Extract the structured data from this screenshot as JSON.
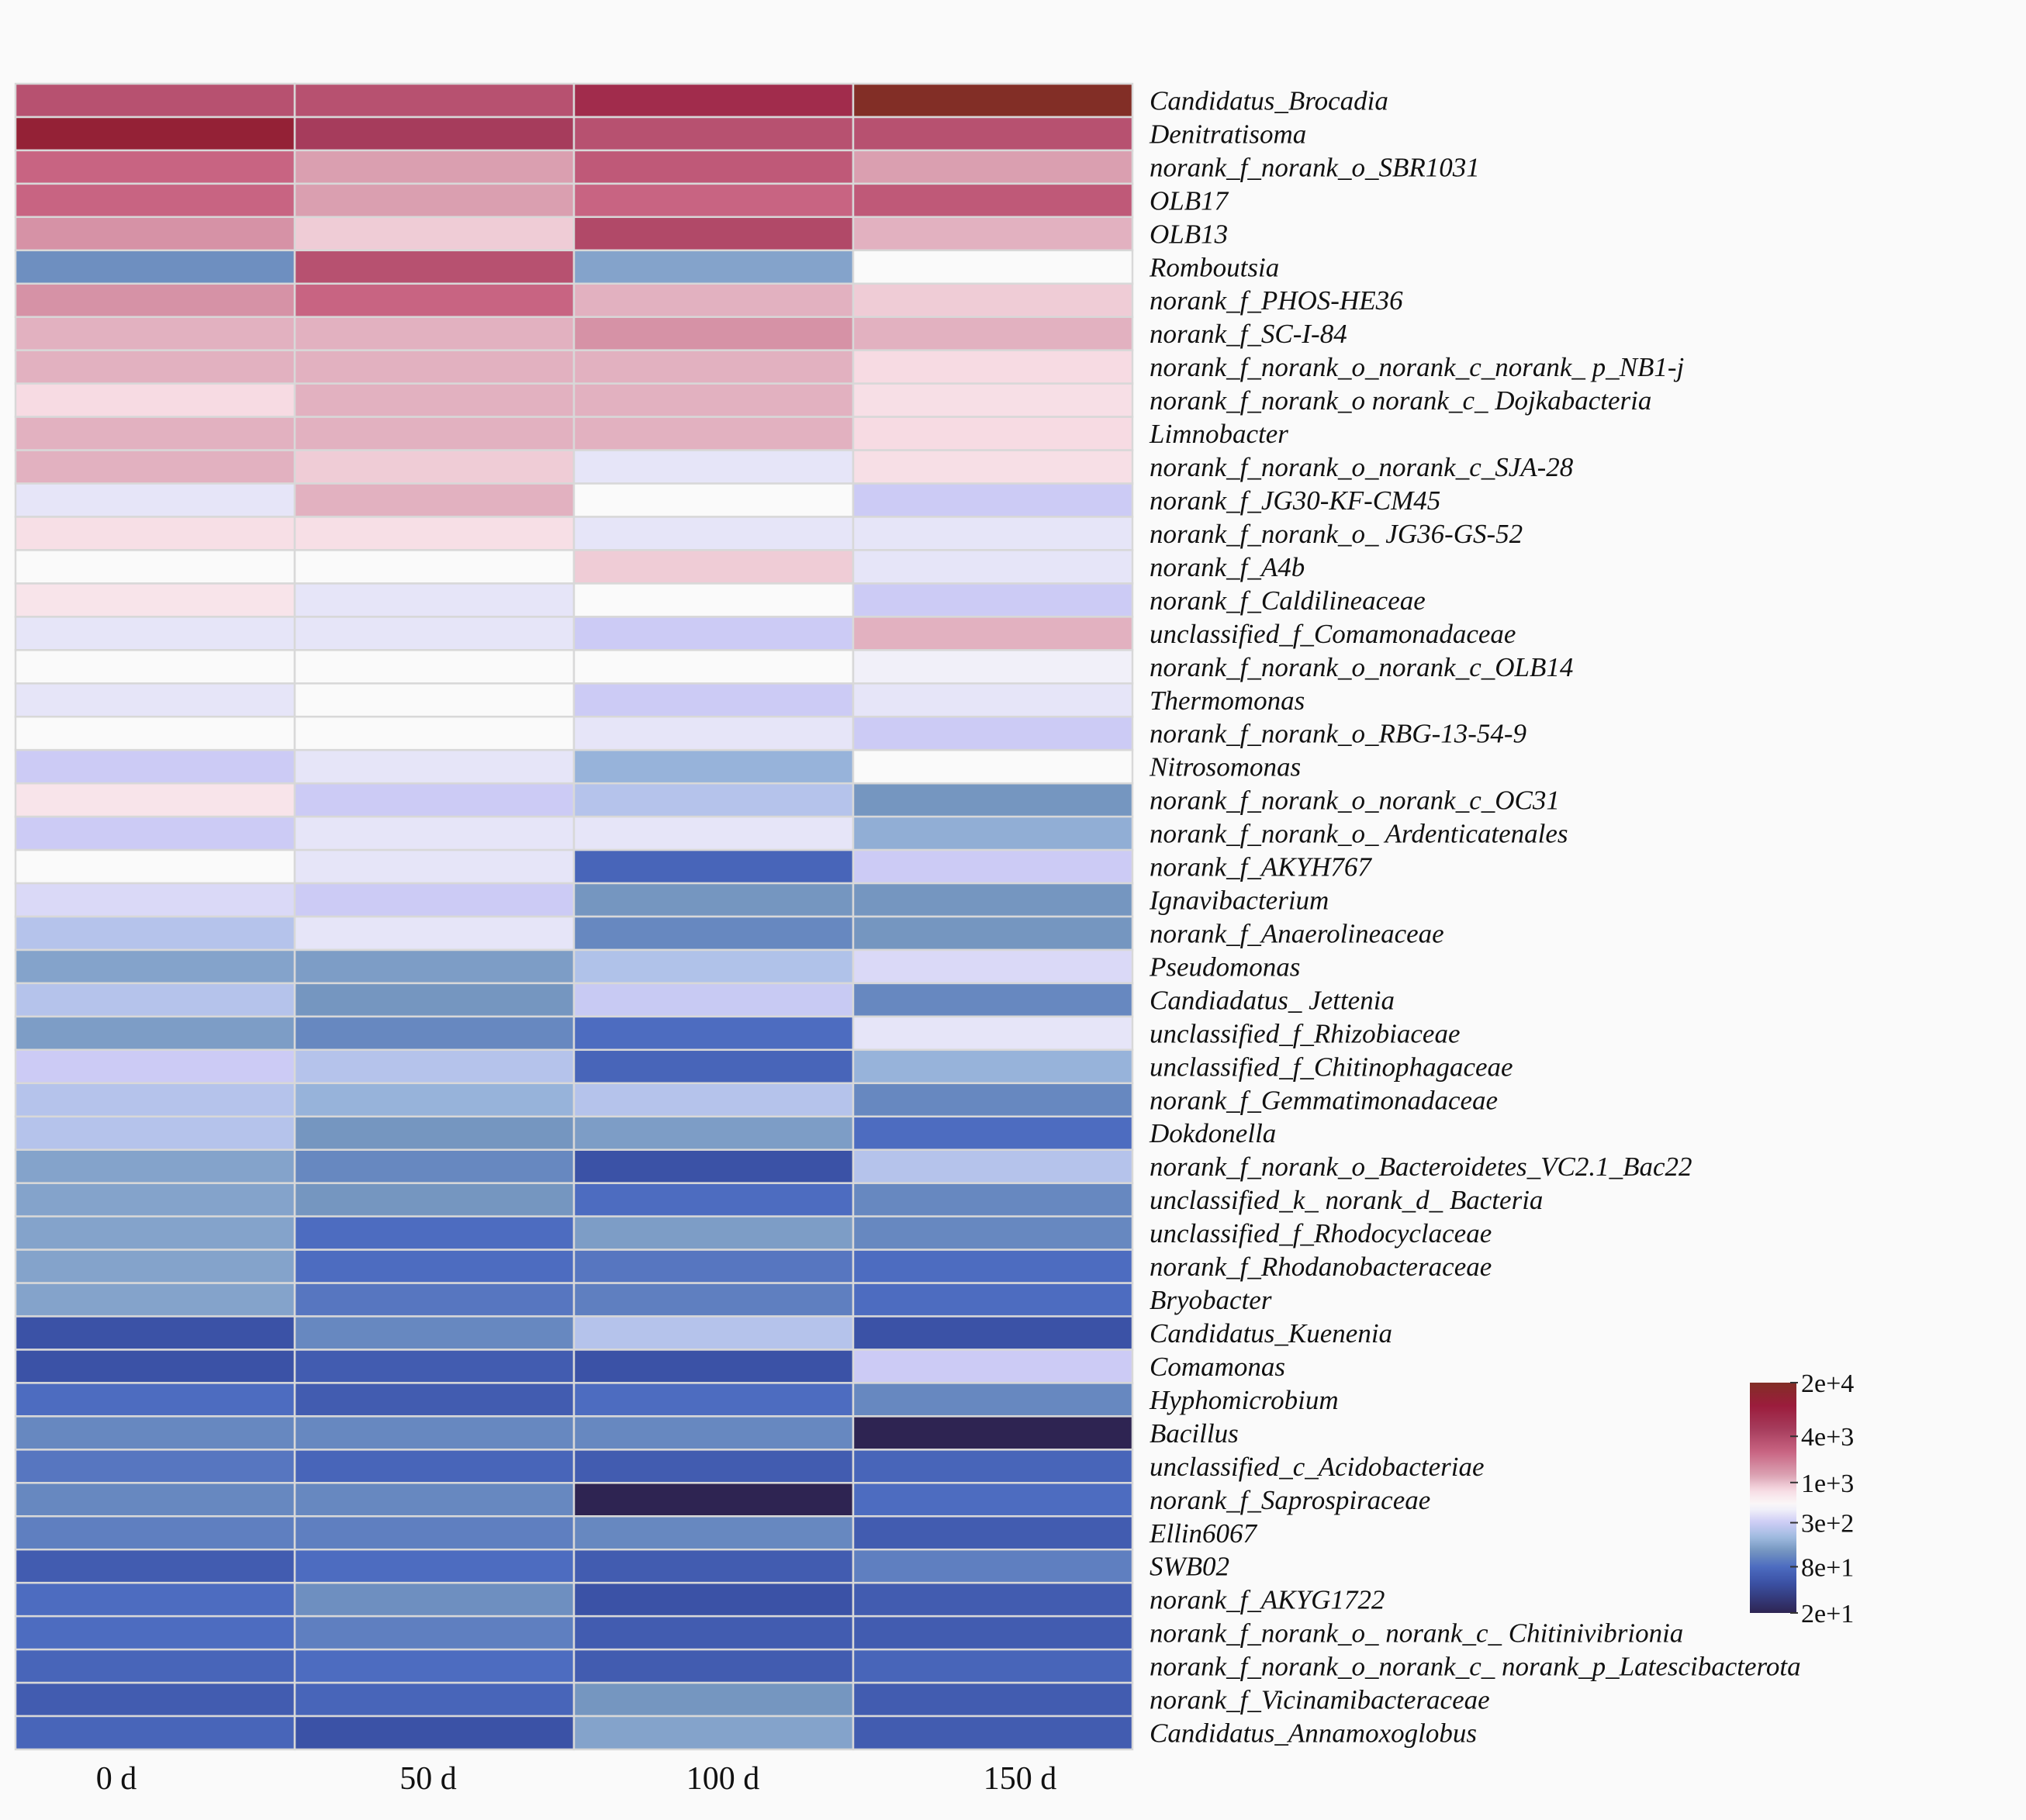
{
  "chart_data": {
    "type": "heatmap",
    "title": "",
    "xlabel": "",
    "ylabel": "",
    "columns": [
      "0 d",
      "50 d",
      "100 d",
      "150 d"
    ],
    "rows": [
      "Candidatus_Brocadia",
      "Denitratisoma",
      "norank_f_norank_o_SBR1031",
      "OLB17",
      "OLB13",
      "Romboutsia",
      "norank_f_PHOS-HE36",
      "norank_f_SC-I-84",
      "norank_f_norank_o_norank_c_norank_ p_NB1-j",
      "norank_f_norank_o norank_c_ Dojkabacteria",
      "Limnobacter",
      "norank_f_norank_o_norank_c_SJA-28",
      "norank_f_JG30-KF-CM45",
      "norank_f_norank_o_ JG36-GS-52",
      "norank_f_A4b",
      "norank_f_Caldilineaceae",
      "unclassified_f_Comamonadaceae",
      "norank_f_norank_o_norank_c_OLB14",
      "Thermomonas",
      "norank_f_norank_o_RBG-13-54-9",
      "Nitrosomonas",
      "norank_f_norank_o_norank_c_OC31",
      "norank_f_norank_o_ Ardenticatenales",
      "norank_f_AKYH767",
      "Ignavibacterium",
      "norank_f_Anaerolineaceae",
      "Pseudomonas",
      "Candiadatus_ Jettenia",
      "unclassified_f_Rhizobiaceae",
      "unclassified_f_Chitinophagaceae",
      "norank_f_Gemmatimonadaceae",
      "Dokdonella",
      "norank_f_norank_o_Bacteroidetes_VC2.1_Bac22",
      "unclassified_k_ norank_d_ Bacteria",
      "unclassified_f_Rhodocyclaceae",
      "norank_f_Rhodanobacteraceae",
      "Bryobacter",
      "Candidatus_Kuenenia",
      "Comamonas",
      "Hyphomicrobium",
      "Bacillus",
      "unclassified_c_Acidobacteriae",
      "norank_f_Saprospiraceae",
      "Ellin6067",
      "SWB02",
      "norank_f_AKYG1722",
      "norank_f_norank_o_ norank_c_ Chitinivibrionia",
      "norank_f_norank_o_norank_c_ norank_p_Latescibacterota",
      "norank_f_Vicinamibacteraceae",
      "Candidatus_Annamoxoglobus"
    ],
    "values": [
      [
        3500,
        3500,
        7000,
        20000
      ],
      [
        12000,
        5000,
        3500,
        3500
      ],
      [
        2500,
        1300,
        3000,
        1300
      ],
      [
        2500,
        1300,
        2500,
        3000
      ],
      [
        1500,
        900,
        4000,
        1100
      ],
      [
        120,
        3500,
        150,
        500
      ],
      [
        1500,
        2500,
        1100,
        900
      ],
      [
        1100,
        1100,
        1500,
        1100
      ],
      [
        1100,
        1100,
        1100,
        800
      ],
      [
        800,
        1100,
        1100,
        750
      ],
      [
        1100,
        1100,
        1100,
        800
      ],
      [
        1100,
        900,
        400,
        750
      ],
      [
        400,
        1100,
        500,
        300
      ],
      [
        750,
        750,
        400,
        400
      ],
      [
        500,
        500,
        900,
        400
      ],
      [
        700,
        400,
        500,
        300
      ],
      [
        400,
        400,
        300,
        1100
      ],
      [
        500,
        500,
        500,
        450
      ],
      [
        400,
        500,
        300,
        400
      ],
      [
        500,
        500,
        400,
        300
      ],
      [
        300,
        400,
        180,
        500
      ],
      [
        700,
        300,
        240,
        130
      ],
      [
        300,
        400,
        400,
        170
      ],
      [
        500,
        400,
        70,
        300
      ],
      [
        350,
        300,
        130,
        130
      ],
      [
        240,
        400,
        110,
        130
      ],
      [
        150,
        140,
        230,
        350
      ],
      [
        240,
        130,
        290,
        110
      ],
      [
        140,
        110,
        80,
        400
      ],
      [
        300,
        240,
        70,
        180
      ],
      [
        240,
        180,
        240,
        110
      ],
      [
        240,
        130,
        140,
        80
      ],
      [
        150,
        110,
        50,
        240
      ],
      [
        150,
        130,
        80,
        110
      ],
      [
        150,
        80,
        140,
        110
      ],
      [
        150,
        80,
        90,
        80
      ],
      [
        150,
        90,
        100,
        80
      ],
      [
        50,
        110,
        240,
        50
      ],
      [
        50,
        60,
        50,
        300
      ],
      [
        80,
        60,
        80,
        110
      ],
      [
        110,
        110,
        110,
        20
      ],
      [
        90,
        70,
        60,
        70
      ],
      [
        110,
        110,
        20,
        80
      ],
      [
        100,
        100,
        110,
        60
      ],
      [
        60,
        80,
        60,
        100
      ],
      [
        80,
        120,
        50,
        60
      ],
      [
        80,
        100,
        60,
        60
      ],
      [
        70,
        80,
        60,
        70
      ],
      [
        60,
        70,
        130,
        60
      ],
      [
        70,
        50,
        150,
        60
      ]
    ],
    "colorbar": {
      "ticks": [
        "2e+4",
        "4e+3",
        "1e+3",
        "3e+2",
        "8e+1",
        "2e+1"
      ],
      "tick_values": [
        20000,
        4000,
        1000,
        300,
        80,
        20
      ],
      "scale": "log",
      "range": [
        20,
        20000
      ]
    },
    "color_stops": [
      {
        "v": 20,
        "c": "#2e2452"
      },
      {
        "v": 50,
        "c": "#3b52a6"
      },
      {
        "v": 80,
        "c": "#4d6cc0"
      },
      {
        "v": 130,
        "c": "#7596c0"
      },
      {
        "v": 200,
        "c": "#a2bde2"
      },
      {
        "v": 300,
        "c": "#cccbf5"
      },
      {
        "v": 500,
        "c": "#fafafa"
      },
      {
        "v": 800,
        "c": "#f7dbe3"
      },
      {
        "v": 1200,
        "c": "#dca6b6"
      },
      {
        "v": 2500,
        "c": "#c86482"
      },
      {
        "v": 5000,
        "c": "#a63c5c"
      },
      {
        "v": 10000,
        "c": "#9b1c3c"
      },
      {
        "v": 20000,
        "c": "#822e26"
      }
    ]
  }
}
